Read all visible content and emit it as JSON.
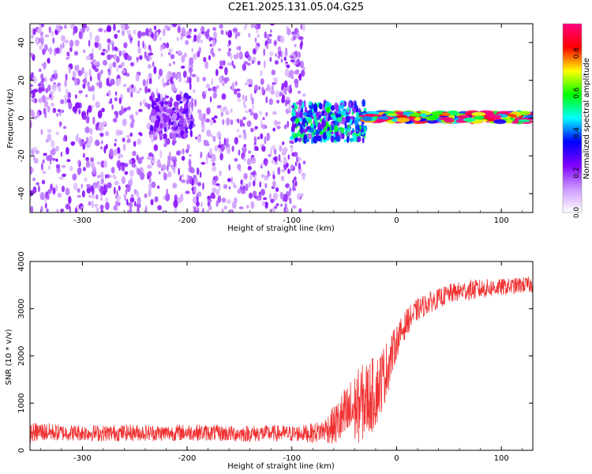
{
  "title": "C2E1.2025.131.05.04.G25",
  "chart_data": [
    {
      "type": "heatmap",
      "title": "C2E1.2025.131.05.04.G25",
      "xlabel": "Height of straight line (km)",
      "ylabel": "Frequency (Hz)",
      "xlim": [
        -350,
        130
      ],
      "ylim": [
        -50,
        50
      ],
      "xticks": [
        -300,
        -200,
        -100,
        0,
        100
      ],
      "yticks": [
        -40,
        -20,
        0,
        20,
        40
      ],
      "grid": false,
      "colorbar": {
        "label": "Normalized spectral amplitude",
        "range": [
          0,
          1
        ],
        "ticks": [
          "0.0",
          "0.2",
          "0.4",
          "0.6",
          "0.8"
        ],
        "colors": [
          "#ffffff",
          "#cc99ff",
          "#7f00ff",
          "#0000ff",
          "#00ffff",
          "#00ff00",
          "#ffff00",
          "#ff0000",
          "#ff0080"
        ]
      },
      "features": [
        {
          "x_range": [
            -350,
            -88
          ],
          "y_range": [
            -50,
            50
          ],
          "amplitude": 0.2,
          "description": "broadband noise"
        },
        {
          "x_range": [
            -235,
            -195
          ],
          "y_range": [
            -10,
            12
          ],
          "amplitude": 0.25
        },
        {
          "x_range": [
            -100,
            -30
          ],
          "y_range": [
            -12,
            8
          ],
          "amplitude": 0.5
        },
        {
          "x_range": [
            -30,
            130
          ],
          "y_range": [
            -2,
            3
          ],
          "amplitude": 0.9
        }
      ]
    },
    {
      "type": "line",
      "xlabel": "Height of straight line (km)",
      "ylabel": "SNR (10 * v/v)",
      "xlim": [
        -350,
        130
      ],
      "ylim": [
        0,
        4000
      ],
      "xticks": [
        -300,
        -200,
        -100,
        0,
        100
      ],
      "yticks": [
        0,
        1000,
        2000,
        3000,
        4000
      ],
      "grid": false,
      "color": "#f03030",
      "series": [
        {
          "x": [
            -350,
            -340,
            -320,
            -300,
            -280,
            -260,
            -240,
            -220,
            -200,
            -180,
            -160,
            -140,
            -120,
            -100,
            -90,
            -80,
            -70,
            -60,
            -50,
            -40,
            -30,
            -20,
            -15,
            -10,
            -5,
            0,
            10,
            20,
            30,
            40,
            50,
            60,
            70,
            80,
            90,
            100,
            110,
            120,
            130
          ],
          "values": [
            300,
            330,
            320,
            320,
            310,
            320,
            320,
            310,
            330,
            320,
            300,
            300,
            310,
            300,
            310,
            300,
            350,
            400,
            500,
            650,
            800,
            1000,
            1250,
            1500,
            1850,
            2200,
            2650,
            2900,
            3050,
            3150,
            3250,
            3300,
            3330,
            3350,
            3380,
            3400,
            3420,
            3450,
            3450
          ],
          "noise_amplitude": [
            300,
            300,
            250,
            250,
            250,
            250,
            250,
            250,
            250,
            250,
            250,
            250,
            250,
            250,
            250,
            300,
            350,
            600,
            900,
            1100,
            1200,
            1100,
            1000,
            900,
            700,
            500,
            400,
            350,
            320,
            300,
            300,
            300,
            320,
            300,
            280,
            260,
            250,
            250,
            250
          ]
        }
      ]
    }
  ]
}
